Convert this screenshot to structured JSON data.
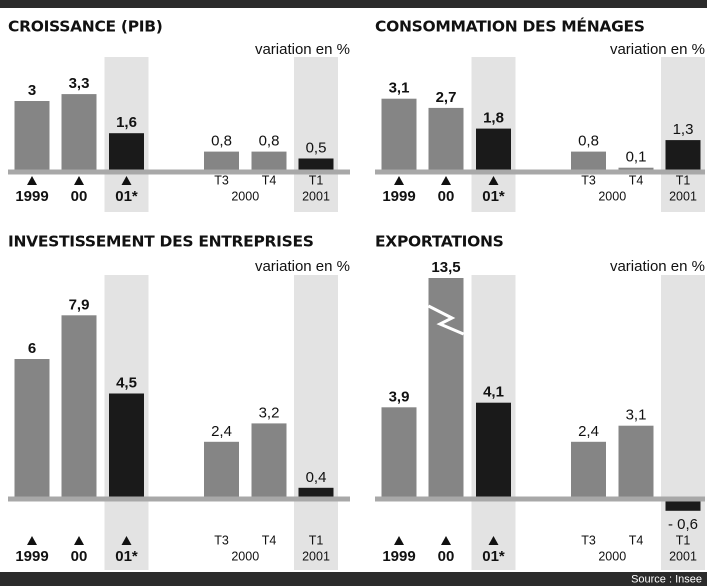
{
  "chart_data": [
    {
      "type": "bar",
      "title": "CROISSANCE (PIB)",
      "unit_label": "variation en %",
      "categories": [
        "1999",
        "00",
        "01*",
        "T3",
        "T4",
        "T1"
      ],
      "group_labels": [
        "2000",
        "2001"
      ],
      "values": [
        3,
        3.3,
        1.6,
        0.8,
        0.8,
        0.5
      ],
      "value_labels": [
        "3",
        "3,3",
        "1,6",
        "0,8",
        "0,8",
        "0,5"
      ],
      "colors": [
        "#858585",
        "#858585",
        "#1a1a1a",
        "#858585",
        "#858585",
        "#1a1a1a"
      ]
    },
    {
      "type": "bar",
      "title": "CONSOMMATION DES MÉNAGES",
      "unit_label": "variation en %",
      "categories": [
        "1999",
        "00",
        "01*",
        "T3",
        "T4",
        "T1"
      ],
      "group_labels": [
        "2000",
        "2001"
      ],
      "values": [
        3.1,
        2.7,
        1.8,
        0.8,
        0.1,
        1.3
      ],
      "value_labels": [
        "3,1",
        "2,7",
        "1,8",
        "0,8",
        "0,1",
        "1,3"
      ],
      "colors": [
        "#858585",
        "#858585",
        "#1a1a1a",
        "#858585",
        "#858585",
        "#1a1a1a"
      ]
    },
    {
      "type": "bar",
      "title": "INVESTISSEMENT DES ENTREPRISES",
      "unit_label": "variation en %",
      "categories": [
        "1999",
        "00",
        "01*",
        "T3",
        "T4",
        "T1"
      ],
      "group_labels": [
        "2000",
        "2001"
      ],
      "values": [
        6,
        7.9,
        4.5,
        2.4,
        3.2,
        0.4
      ],
      "value_labels": [
        "6",
        "7,9",
        "4,5",
        "2,4",
        "3,2",
        "0,4"
      ],
      "colors": [
        "#858585",
        "#858585",
        "#1a1a1a",
        "#858585",
        "#858585",
        "#1a1a1a"
      ]
    },
    {
      "type": "bar",
      "title": "EXPORTATIONS",
      "unit_label": "variation en %",
      "categories": [
        "1999",
        "00",
        "01*",
        "T3",
        "T4",
        "T1"
      ],
      "group_labels": [
        "2000",
        "2001"
      ],
      "values": [
        3.9,
        13.5,
        4.1,
        2.4,
        3.1,
        -0.6
      ],
      "value_labels": [
        "3,9",
        "13,5",
        "4,1",
        "2,4",
        "3,1",
        "- 0,6"
      ],
      "colors": [
        "#858585",
        "#858585",
        "#1a1a1a",
        "#858585",
        "#858585",
        "#1a1a1a"
      ],
      "axis_break": true
    }
  ],
  "source": "Source : Insee"
}
